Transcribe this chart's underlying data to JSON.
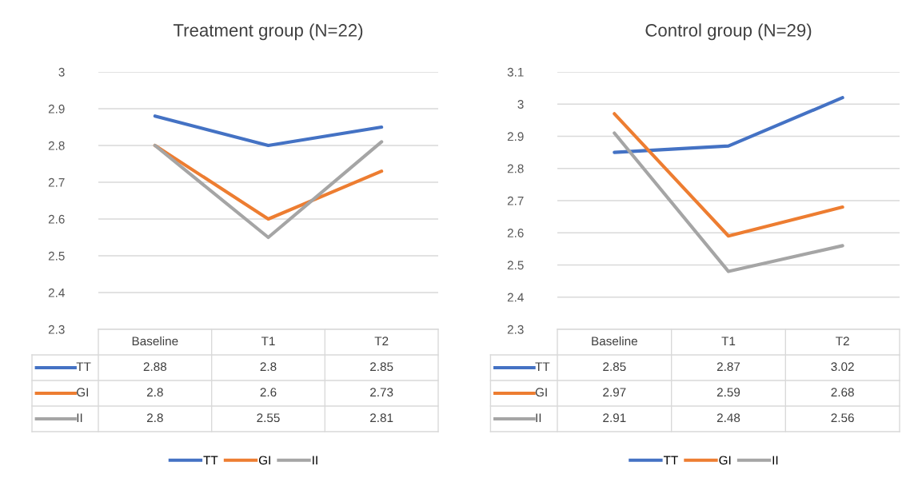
{
  "chart_data": [
    {
      "type": "line",
      "title": "Treatment group (N=22)",
      "categories": [
        "Baseline",
        "T1",
        "T2"
      ],
      "series": [
        {
          "name": "TT",
          "color": "#4472c4",
          "values": [
            2.88,
            2.8,
            2.85
          ]
        },
        {
          "name": "GI",
          "color": "#ed7d31",
          "values": [
            2.8,
            2.6,
            2.73
          ]
        },
        {
          "name": "II",
          "color": "#a5a5a5",
          "values": [
            2.8,
            2.55,
            2.81
          ]
        }
      ],
      "ylim": [
        2.3,
        3
      ],
      "yticks": [
        2.3,
        2.4,
        2.5,
        2.6,
        2.7,
        2.8,
        2.9,
        3
      ],
      "grid": "y",
      "legend": "bottom",
      "data_labels": true,
      "tick_labels": "y",
      "marker": "none",
      "line_style": "solid"
    },
    {
      "type": "line",
      "title": "Control group (N=29)",
      "categories": [
        "Baseline",
        "T1",
        "T2"
      ],
      "series": [
        {
          "name": "TT",
          "color": "#4472c4",
          "values": [
            2.85,
            2.87,
            3.02
          ]
        },
        {
          "name": "GI",
          "color": "#ed7d31",
          "values": [
            2.97,
            2.59,
            2.68
          ]
        },
        {
          "name": "II",
          "color": "#a5a5a5",
          "values": [
            2.91,
            2.48,
            2.56
          ]
        }
      ],
      "ylim": [
        2.3,
        3.1
      ],
      "yticks": [
        2.3,
        2.4,
        2.5,
        2.6,
        2.7,
        2.8,
        2.9,
        3,
        3.1
      ],
      "grid": "y",
      "legend": "bottom",
      "data_labels": true,
      "tick_labels": "y",
      "marker": "none",
      "line_style": "solid"
    }
  ]
}
